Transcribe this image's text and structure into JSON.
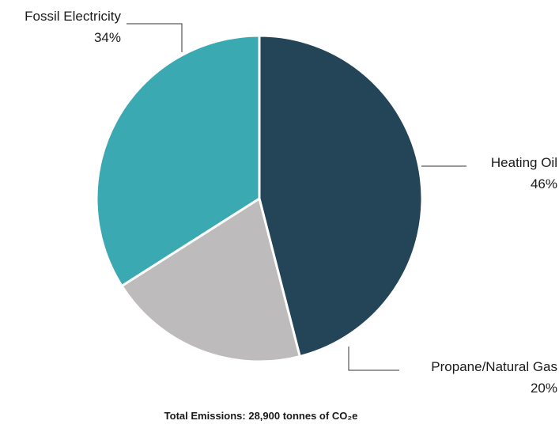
{
  "chart_data": {
    "type": "pie",
    "slices": [
      {
        "name": "Heating Oil",
        "value": 46,
        "label": "46%",
        "color": "#234557"
      },
      {
        "name": "Propane/Natural Gas",
        "value": 20,
        "label": "20%",
        "color": "#bdbbbb"
      },
      {
        "name": "Fossil Electricity",
        "value": 34,
        "label": "34%",
        "color": "#3aa9b2"
      }
    ],
    "footer": "Total Emissions: 28,900 tonnes of CO₂e"
  }
}
